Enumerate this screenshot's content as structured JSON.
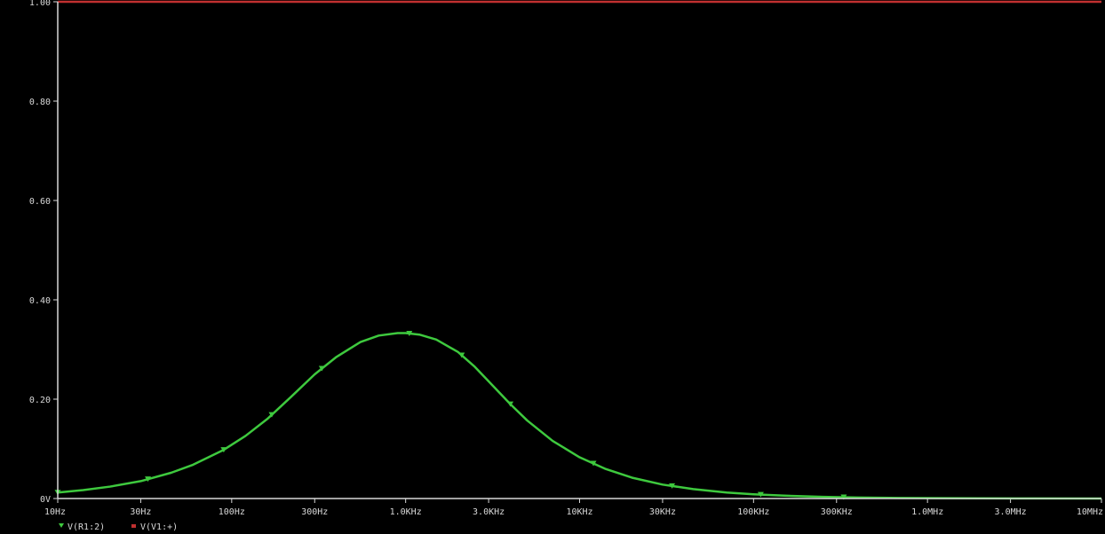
{
  "chart_data": {
    "type": "line",
    "x_scale": "log",
    "xlim": [
      "10Hz",
      "10MHz"
    ],
    "ylim": [
      0,
      1.0
    ],
    "x_ticks": [
      {
        "label": "10Hz",
        "value": 10
      },
      {
        "label": "30Hz",
        "value": 30
      },
      {
        "label": "100Hz",
        "value": 100
      },
      {
        "label": "300Hz",
        "value": 300
      },
      {
        "label": "1.0KHz",
        "value": 1000
      },
      {
        "label": "3.0KHz",
        "value": 3000
      },
      {
        "label": "10KHz",
        "value": 10000
      },
      {
        "label": "30KHz",
        "value": 30000
      },
      {
        "label": "100KHz",
        "value": 100000
      },
      {
        "label": "300KHz",
        "value": 300000
      },
      {
        "label": "1.0MHz",
        "value": 1000000
      },
      {
        "label": "3.0MHz",
        "value": 3000000
      },
      {
        "label": "10MHz",
        "value": 10000000
      }
    ],
    "y_ticks": [
      {
        "label": "0V",
        "value": 0
      },
      {
        "label": "0.20",
        "value": 0.2
      },
      {
        "label": "0.40",
        "value": 0.4
      },
      {
        "label": "0.60",
        "value": 0.6
      },
      {
        "label": "0.80",
        "value": 0.8
      },
      {
        "label": "1.00",
        "value": 1.0
      }
    ],
    "grid": false,
    "legend_position": "bottom-left",
    "series": [
      {
        "name": "V(R1:2)",
        "color": "#3ec93e",
        "marker": "triangle-down",
        "x": [
          10,
          14,
          20,
          30,
          45,
          60,
          90,
          120,
          160,
          220,
          300,
          400,
          550,
          700,
          900,
          1000,
          1200,
          1500,
          2000,
          2500,
          3000,
          4000,
          5000,
          7000,
          10000,
          14000,
          20000,
          30000,
          45000,
          70000,
          100000,
          150000,
          250000,
          400000,
          700000,
          1000000,
          2000000,
          4000000,
          10000000
        ],
        "y": [
          0.012,
          0.017,
          0.024,
          0.035,
          0.052,
          0.068,
          0.098,
          0.126,
          0.16,
          0.205,
          0.25,
          0.285,
          0.315,
          0.328,
          0.333,
          0.333,
          0.33,
          0.32,
          0.295,
          0.265,
          0.236,
          0.19,
          0.157,
          0.116,
          0.083,
          0.06,
          0.042,
          0.028,
          0.019,
          0.012,
          0.0085,
          0.0057,
          0.0034,
          0.0021,
          0.0012,
          0.0008,
          0.0004,
          0.0002,
          0.0001
        ]
      },
      {
        "name": "V(V1:+)",
        "color": "#c03030",
        "marker": "square",
        "x": [
          10,
          10000000
        ],
        "y": [
          1.0,
          1.0
        ]
      }
    ],
    "series_markers_x": [
      [
        10,
        33,
        90,
        170,
        330,
        1050,
        2100,
        4000,
        12000,
        34000,
        110000,
        330000
      ],
      []
    ]
  }
}
